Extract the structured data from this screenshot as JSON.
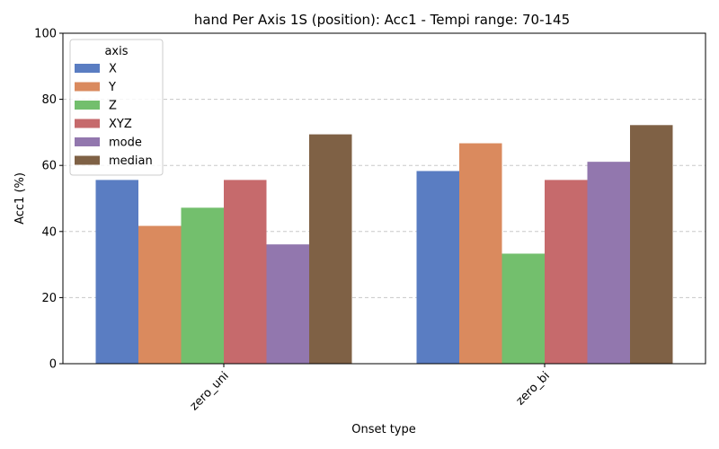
{
  "chart_data": {
    "type": "bar",
    "title": "hand Per Axis 1S (position): Acc1 - Tempi range: 70-145",
    "xlabel": "Onset type",
    "ylabel": "Acc1 (%)",
    "ylim": [
      0,
      100
    ],
    "yticks": [
      0,
      20,
      40,
      60,
      80,
      100
    ],
    "grid": "y-dashed",
    "legend": {
      "title": "axis",
      "placement": "top-left"
    },
    "categories": [
      "zero_uni",
      "zero_bi"
    ],
    "series": [
      {
        "name": "X",
        "color": "#5A7DC2",
        "values": [
          55.6,
          58.3
        ]
      },
      {
        "name": "Y",
        "color": "#DA8A5E",
        "values": [
          41.7,
          66.7
        ]
      },
      {
        "name": "Z",
        "color": "#73BF6D",
        "values": [
          47.2,
          33.3
        ]
      },
      {
        "name": "XYZ",
        "color": "#C66A6C",
        "values": [
          55.6,
          55.6
        ]
      },
      {
        "name": "mode",
        "color": "#9277AE",
        "values": [
          36.1,
          61.1
        ]
      },
      {
        "name": "median",
        "color": "#7F6145",
        "values": [
          69.4,
          72.2
        ]
      }
    ]
  }
}
